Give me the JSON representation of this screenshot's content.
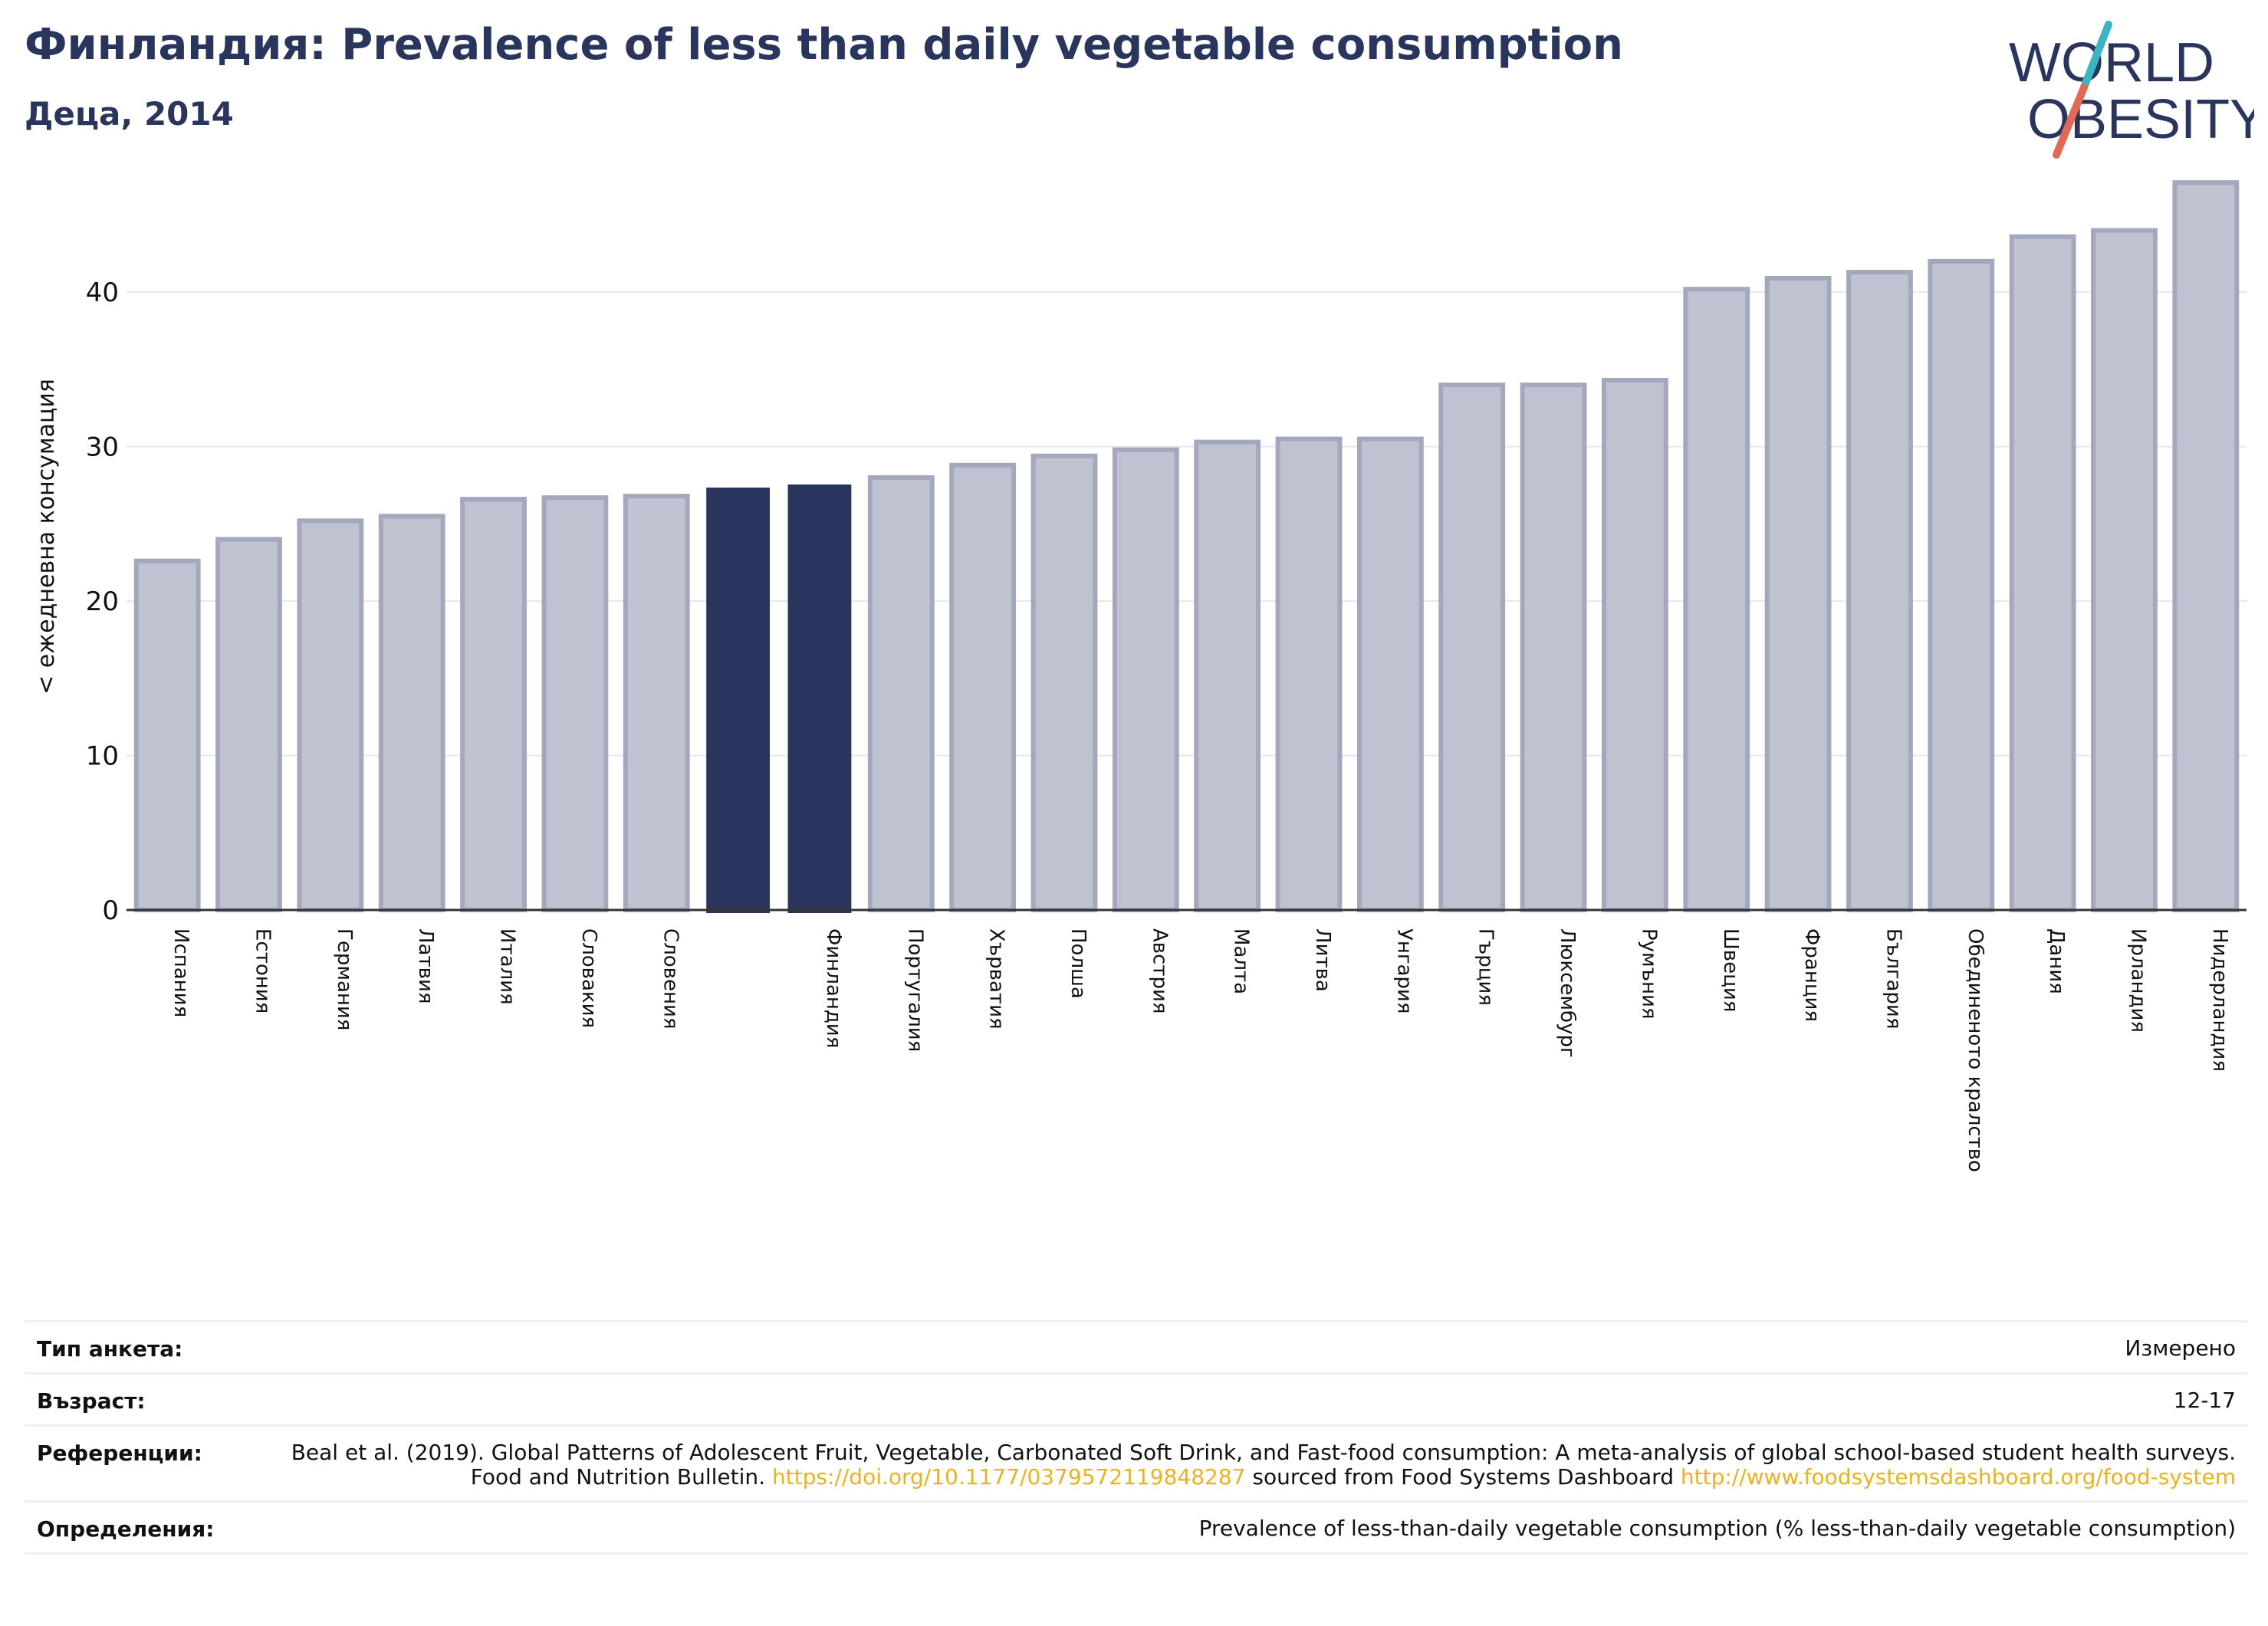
{
  "header": {
    "title": "Финландия: Prevalence of less than daily vegetable consumption",
    "subtitle": "Деца, 2014"
  },
  "logo": {
    "line1": "WORLD",
    "line2": "OBESITY",
    "colors": {
      "text": "#2a355e",
      "slash_top": "#3bb5c4",
      "slash_bottom": "#e06a55"
    }
  },
  "colors": {
    "highlight": "#2a355e",
    "bar_fill": "#bfc2d0",
    "bar_stroke": "#a3a8bc",
    "grid": "#e6e8ee",
    "axis": "#333333"
  },
  "chart_data": {
    "type": "bar",
    "title": "",
    "xlabel": "",
    "ylabel": "< ежедневна консумация",
    "ylim": [
      0,
      48
    ],
    "yticks": [
      0,
      10,
      20,
      30,
      40
    ],
    "grid": true,
    "categories": [
      "Испания",
      "Естония",
      "Германия",
      "Латвия",
      "Италия",
      "Словакия",
      "Словения",
      "",
      "Финландия",
      "Португалия",
      "Хърватия",
      "Полша",
      "Австрия",
      "Малта",
      "Литва",
      "Унгария",
      "Гърция",
      "Люксембург",
      "Румъния",
      "Швеция",
      "Франция",
      "България",
      "Обединеното кралство",
      "Дания",
      "Ирландия",
      "Нидерландия"
    ],
    "values": [
      22.6,
      24.0,
      25.2,
      25.5,
      26.6,
      26.7,
      26.8,
      27.3,
      27.5,
      28.0,
      28.8,
      29.4,
      29.8,
      30.3,
      30.5,
      30.5,
      34.0,
      34.0,
      34.3,
      40.2,
      40.9,
      41.3,
      42.0,
      43.6,
      44.0,
      47.1
    ],
    "highlighted": [
      7,
      8
    ]
  },
  "meta": {
    "rows": [
      {
        "label": "Тип анкета:",
        "value": "Измерено"
      },
      {
        "label": "Възраст:",
        "value": "12-17"
      },
      {
        "label": "Референции:",
        "text1": "Beal et al. (2019). Global Patterns of Adolescent Fruit, Vegetable, Carbonated Soft Drink, and Fast-food consumption: A meta-analysis of global school-based student health surveys. Food and Nutrition Bulletin. ",
        "link1": "https://doi.org/10.1177/0379572119848287",
        "text2": " sourced from Food Systems Dashboard ",
        "link2": "http://www.foodsystemsdashboard.org/food-system"
      },
      {
        "label": "Определения:",
        "value": "Prevalence of less-than-daily vegetable consumption (% less-than-daily vegetable consumption)"
      }
    ]
  }
}
